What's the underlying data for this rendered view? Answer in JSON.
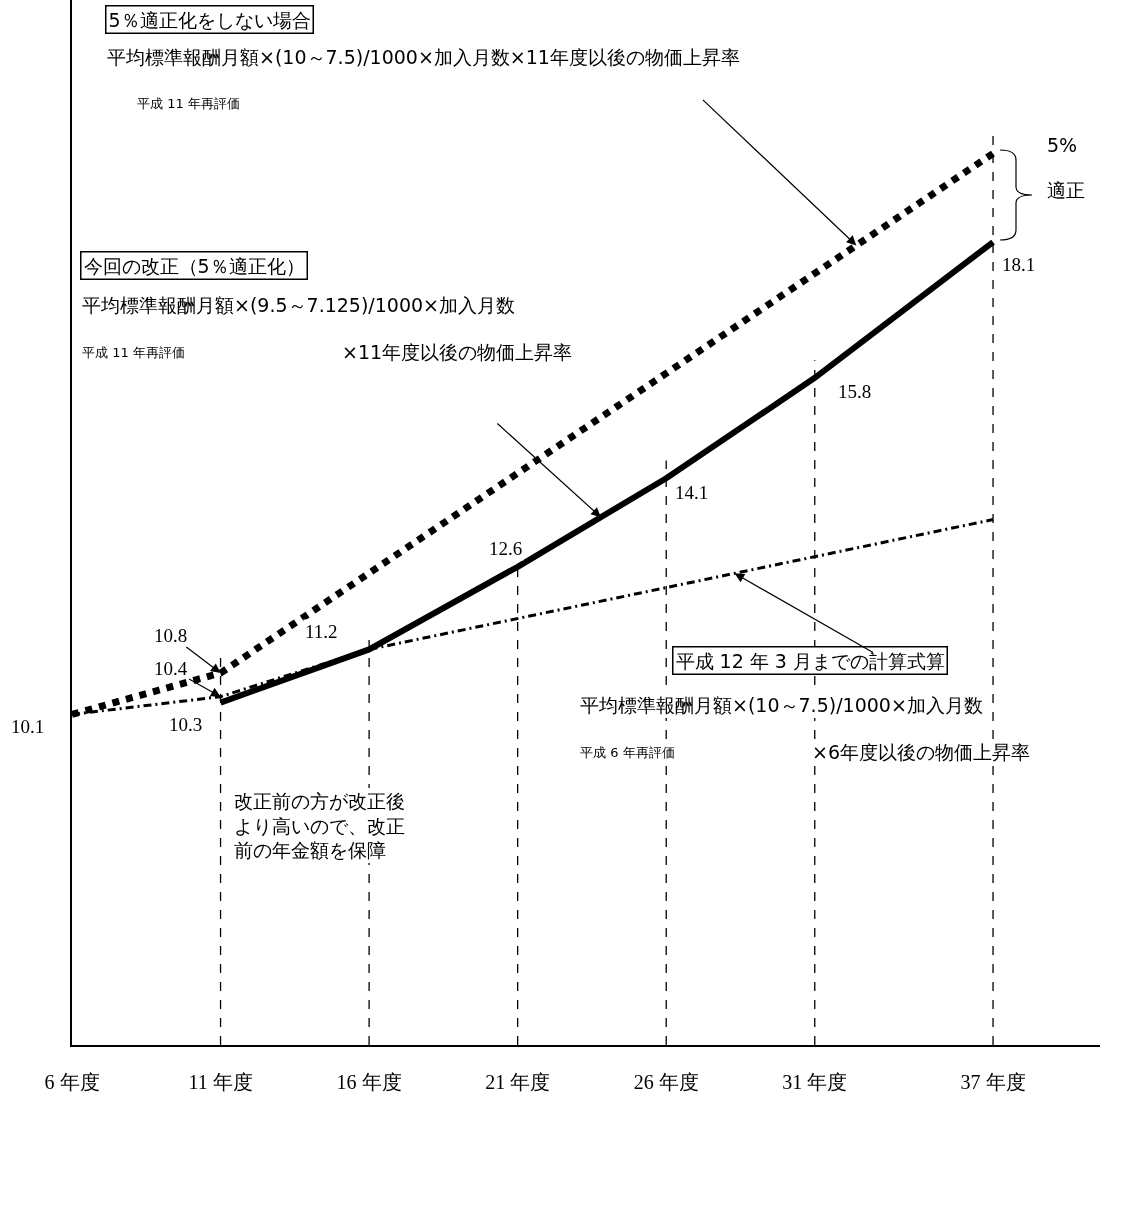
{
  "chart_data": {
    "type": "line",
    "xlim": [
      6,
      40.6
    ],
    "xticks": [
      {
        "value": 6,
        "label": "6 年度"
      },
      {
        "value": 11,
        "label": "11 年度"
      },
      {
        "value": 16,
        "label": "16 年度"
      },
      {
        "value": 21,
        "label": "21 年度"
      },
      {
        "value": 26,
        "label": "26 年度"
      },
      {
        "value": 31,
        "label": "31 年度"
      },
      {
        "value": 37,
        "label": "37 年度"
      }
    ],
    "ylim": [
      4.5,
      22.2
    ],
    "grid": false,
    "series": [
      {
        "color": "#000000",
        "line_style": "dotted",
        "x": [
          6,
          11,
          37
        ],
        "values": [
          10.1,
          10.8,
          19.6
        ],
        "value_labels": [
          "10.1",
          "10.8",
          null
        ]
      },
      {
        "color": "#000000",
        "line_style": "dashed",
        "x": [
          6,
          11,
          16,
          37
        ],
        "values": [
          10.1,
          10.4,
          11.2,
          13.4
        ],
        "value_labels": [
          null,
          "10.4",
          null,
          null
        ]
      },
      {
        "color": "#000000",
        "line_style": "solid",
        "x": [
          11,
          16,
          21,
          26,
          31,
          37
        ],
        "values": [
          10.3,
          11.2,
          12.6,
          14.1,
          15.8,
          18.1
        ],
        "value_labels": [
          "10.3",
          "11.2",
          "12.6",
          "14.1",
          "15.8",
          "18.1"
        ]
      }
    ],
    "ref_lines": [
      {
        "axis": "x",
        "value": 11,
        "color": "#000000",
        "line_style": "dashed"
      },
      {
        "axis": "x",
        "value": 16,
        "color": "#000000",
        "line_style": "dashed"
      },
      {
        "axis": "x",
        "value": 21,
        "color": "#000000",
        "line_style": "dashed"
      },
      {
        "axis": "x",
        "value": 26,
        "color": "#000000",
        "line_style": "dashed"
      },
      {
        "axis": "x",
        "value": 31,
        "color": "#000000",
        "line_style": "dashed"
      },
      {
        "axis": "x",
        "value": 37,
        "color": "#000000",
        "line_style": "dashed"
      }
    ],
    "annotations": [
      "5％適正化をしない場合",
      "平均標準報酬月額×(10～7.5)/1000×加入月数×11年度以後の物価上昇率",
      "平成 11 年再評価",
      "今回の改正（5％適正化）",
      "平均標準報酬月額×(9.5～7.125)/1000×加入月数",
      "平成 11 年再評価",
      "×11年度以後の物価上昇率",
      "平成 12 年 3 月までの計算式算",
      "平均標準報酬月額×(10～7.5)/1000×加入月数",
      "平成 6 年再評価",
      "×6年度以後の物価上昇率",
      "改正前の方が改正後より高いので、改正前の年金額を保障",
      "5%",
      "適正"
    ]
  }
}
